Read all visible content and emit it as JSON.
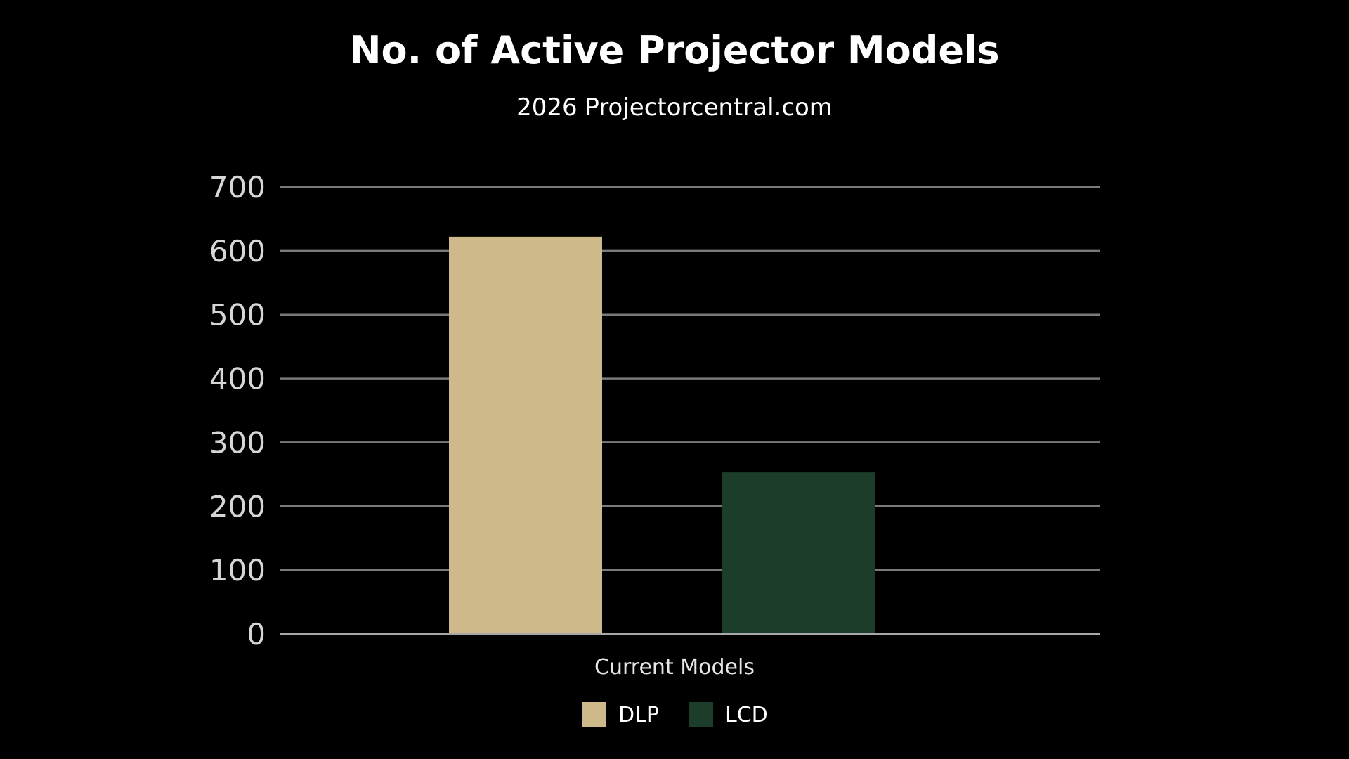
{
  "chart_data": {
    "type": "bar",
    "title": "No. of Active Projector Models",
    "subtitle": "2026 Projectorcentral.com",
    "categories": [
      "Current Models"
    ],
    "xlabel": "Current Models",
    "ylabel": "",
    "ylim": [
      0,
      700
    ],
    "yticks": [
      0,
      100,
      200,
      300,
      400,
      500,
      600,
      700
    ],
    "grid": true,
    "legend_position": "bottom",
    "series": [
      {
        "name": "DLP",
        "values": [
          622
        ],
        "color": "#cdb98a"
      },
      {
        "name": "LCD",
        "values": [
          253
        ],
        "color": "#1c3d29"
      }
    ]
  },
  "colors": {
    "background": "#000000",
    "gridline": "#7a7a7a",
    "axis": "#a8a8a8"
  }
}
